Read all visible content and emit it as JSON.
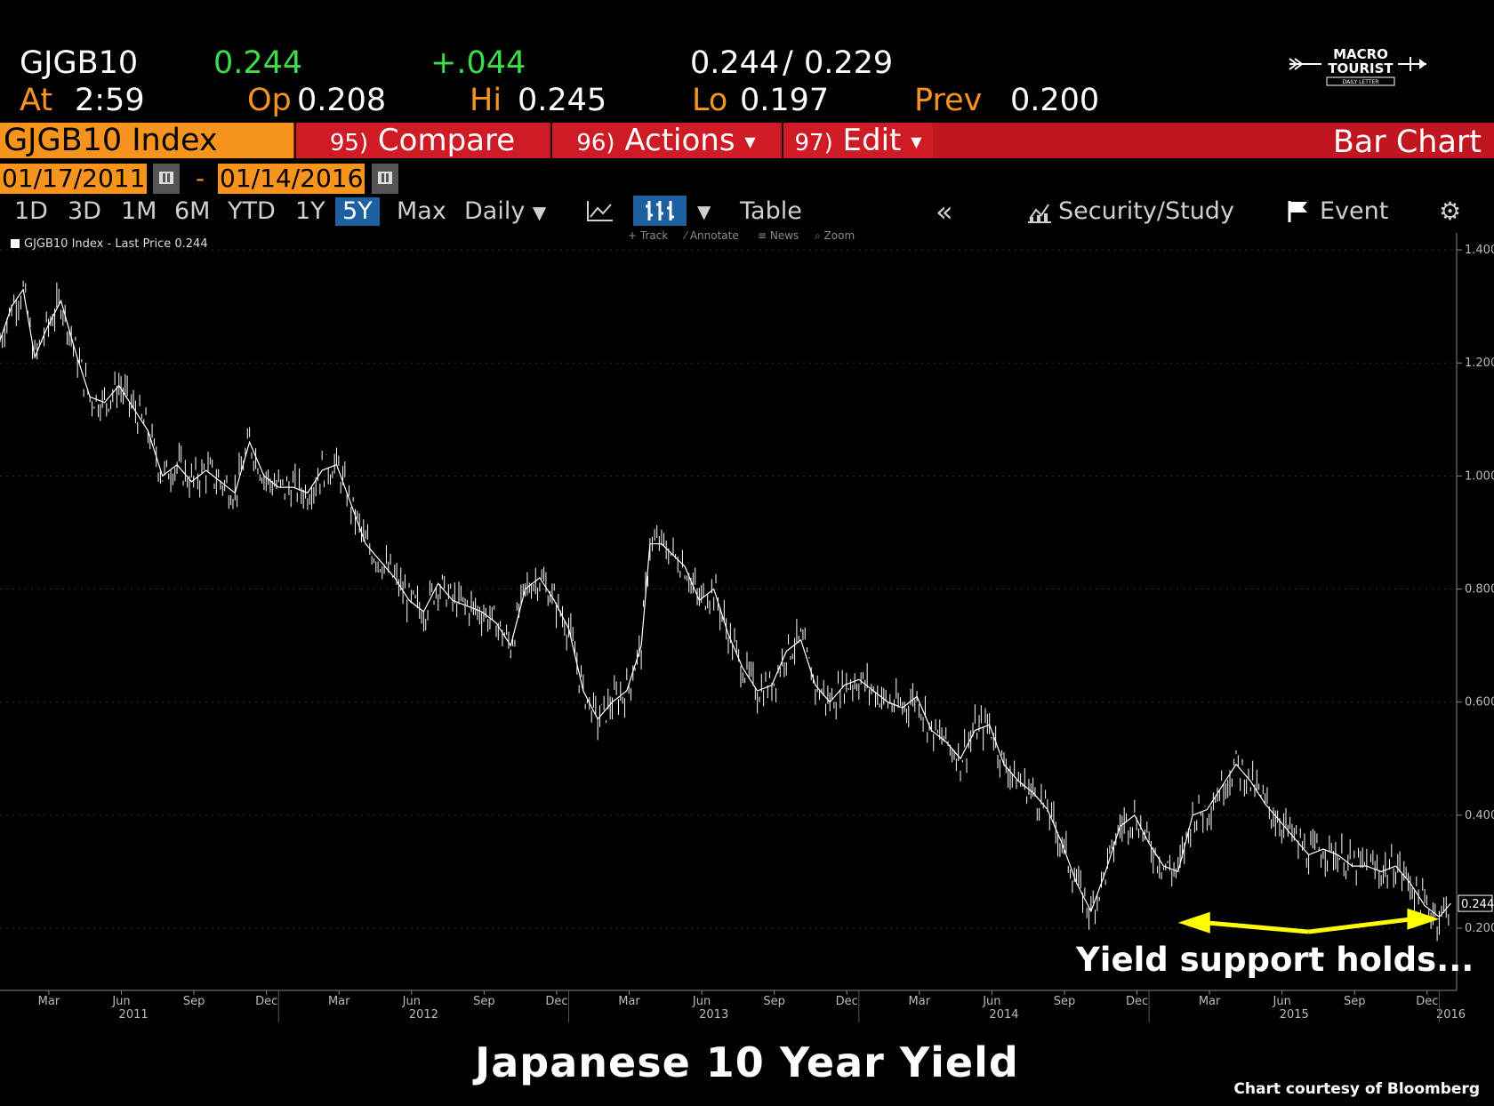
{
  "quote": {
    "ticker": "GJGB10",
    "last": "0.244",
    "change": "+.044",
    "bid_ask": "0.244",
    "bid_ask_sep": "/",
    "bid_ask2": "0.229",
    "at_label": "At",
    "at_time": "2:59",
    "open_label": "Op",
    "open": "0.208",
    "high_label": "Hi",
    "high": "0.245",
    "low_label": "Lo",
    "low": "0.197",
    "prev_label": "Prev",
    "prev": "0.200"
  },
  "header": {
    "index_name": "GJGB10 Index",
    "compare_num": "95)",
    "compare_label": "Compare",
    "actions_num": "96)",
    "actions_label": "Actions",
    "edit_num": "97)",
    "edit_label": "Edit",
    "chart_type": "Bar Chart"
  },
  "range": {
    "start": "01/17/2011",
    "sep": "-",
    "end": "01/14/2016"
  },
  "toolbar": {
    "periods": [
      "1D",
      "3D",
      "1M",
      "6M",
      "YTD",
      "1Y",
      "5Y",
      "Max"
    ],
    "active_period": "5Y",
    "frequency": "Daily",
    "table": "Table",
    "security_study": "Security/Study",
    "event": "Event",
    "sub_tools": [
      "Track",
      "Annotate",
      "News",
      "Zoom"
    ]
  },
  "logo": {
    "line1": "MACRO",
    "line2": "TOURIST",
    "line3": "DAILY LETTER"
  },
  "chart_data": {
    "type": "bar",
    "legend": "GJGB10 Index - Last Price 0.244",
    "last_price_tag": "0.244",
    "y_ticks": [
      "1.400",
      "1.200",
      "1.000",
      "0.800",
      "0.600",
      "0.400",
      "0.200"
    ],
    "ylim": [
      0.09,
      1.43
    ],
    "x_month_ticks": [
      "Mar",
      "Jun",
      "Sep",
      "Dec",
      "Mar",
      "Jun",
      "Sep",
      "Dec",
      "Mar",
      "Jun",
      "Sep",
      "Dec",
      "Mar",
      "Jun",
      "Sep",
      "Dec",
      "Mar",
      "Jun",
      "Sep",
      "Dec"
    ],
    "x_year_ticks": [
      "2011",
      "2012",
      "2013",
      "2014",
      "2015",
      "2016"
    ],
    "series": [
      {
        "x": [
          2011.04,
          2011.08,
          2011.12,
          2011.16,
          2011.2,
          2011.25,
          2011.3,
          2011.35,
          2011.4,
          2011.45,
          2011.5,
          2011.55,
          2011.6,
          2011.65,
          2011.7,
          2011.75,
          2011.8,
          2011.85,
          2011.9,
          2011.95,
          2012.0,
          2012.05,
          2012.1,
          2012.15,
          2012.2,
          2012.25,
          2012.3,
          2012.35,
          2012.4,
          2012.45,
          2012.5,
          2012.55,
          2012.6,
          2012.65,
          2012.7,
          2012.75,
          2012.8,
          2012.85,
          2012.9,
          2012.95,
          2013.0,
          2013.05,
          2013.1,
          2013.15,
          2013.2,
          2013.25,
          2013.28,
          2013.32,
          2013.36,
          2013.4,
          2013.45,
          2013.5,
          2013.55,
          2013.6,
          2013.65,
          2013.7,
          2013.75,
          2013.8,
          2013.85,
          2013.9,
          2013.95,
          2014.0,
          2014.05,
          2014.1,
          2014.15,
          2014.2,
          2014.25,
          2014.3,
          2014.35,
          2014.4,
          2014.45,
          2014.5,
          2014.55,
          2014.6,
          2014.65,
          2014.7,
          2014.75,
          2014.8,
          2014.85,
          2014.9,
          2014.95,
          2015.0,
          2015.05,
          2015.1,
          2015.15,
          2015.2,
          2015.25,
          2015.3,
          2015.35,
          2015.4,
          2015.45,
          2015.5,
          2015.55,
          2015.6,
          2015.65,
          2015.7,
          2015.75,
          2015.8,
          2015.85,
          2015.9,
          2015.95,
          2016.0,
          2016.04
        ],
        "values": [
          1.24,
          1.3,
          1.33,
          1.21,
          1.26,
          1.31,
          1.22,
          1.14,
          1.13,
          1.16,
          1.12,
          1.08,
          1.0,
          1.02,
          0.99,
          1.01,
          0.99,
          0.97,
          1.06,
          1.0,
          0.98,
          0.98,
          0.97,
          1.01,
          1.02,
          0.95,
          0.88,
          0.85,
          0.82,
          0.78,
          0.76,
          0.81,
          0.78,
          0.77,
          0.76,
          0.74,
          0.7,
          0.8,
          0.82,
          0.78,
          0.73,
          0.62,
          0.57,
          0.6,
          0.62,
          0.7,
          0.88,
          0.88,
          0.86,
          0.84,
          0.78,
          0.8,
          0.72,
          0.66,
          0.62,
          0.63,
          0.69,
          0.71,
          0.63,
          0.6,
          0.63,
          0.64,
          0.62,
          0.6,
          0.59,
          0.61,
          0.55,
          0.53,
          0.5,
          0.55,
          0.56,
          0.49,
          0.46,
          0.44,
          0.41,
          0.35,
          0.28,
          0.23,
          0.3,
          0.38,
          0.4,
          0.35,
          0.31,
          0.3,
          0.4,
          0.41,
          0.45,
          0.49,
          0.46,
          0.42,
          0.39,
          0.36,
          0.33,
          0.34,
          0.33,
          0.31,
          0.31,
          0.3,
          0.31,
          0.28,
          0.24,
          0.22,
          0.244
        ]
      }
    ],
    "annotation": "Yield support holds...",
    "title": "Japanese 10 Year Yield",
    "credit": "Chart courtesy of Bloomberg",
    "colors": {
      "line": "#ffffff",
      "arrow": "#ffff00",
      "background": "#000000"
    }
  }
}
